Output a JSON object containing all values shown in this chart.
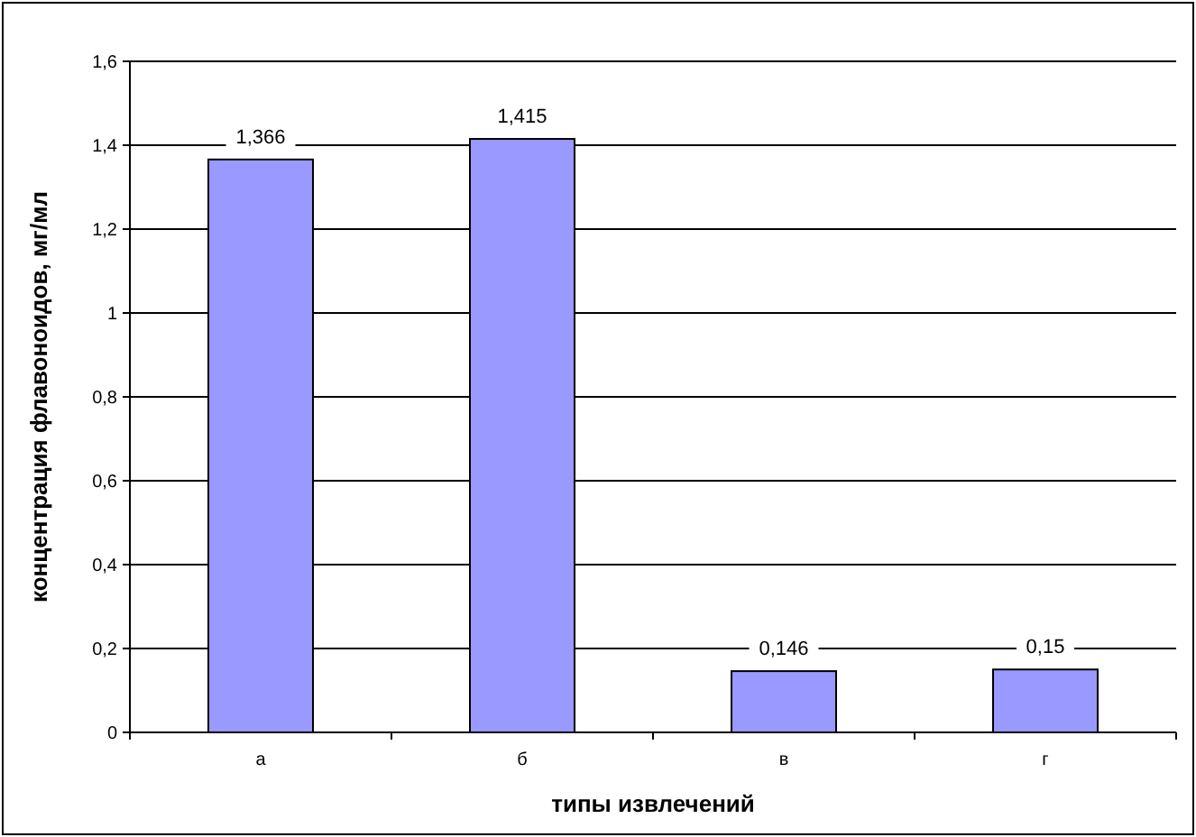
{
  "chart_data": {
    "type": "bar",
    "xlabel": "типы извлечений",
    "ylabel": "концентрация флавоноидов, мг/мл",
    "categories": [
      "а",
      "б",
      "в",
      "г"
    ],
    "values": [
      1.366,
      1.415,
      0.146,
      0.15
    ],
    "value_labels": [
      "1,366",
      "1,415",
      "0,146",
      "0,15"
    ],
    "color": "#9999ff",
    "ylim": [
      0,
      1.6
    ],
    "yticks": [
      0,
      {
        "value": 0.2,
        "label": "0,2"
      },
      {
        "value": 0.4,
        "label": "0,4"
      },
      {
        "value": 0.6,
        "label": "0,6"
      },
      {
        "value": 0.8,
        "label": "0,8"
      },
      1,
      {
        "value": 1.2,
        "label": "1,2"
      },
      {
        "value": 1.4,
        "label": "1,4"
      },
      {
        "value": 1.6,
        "label": "1,6"
      }
    ],
    "grid": "y"
  }
}
